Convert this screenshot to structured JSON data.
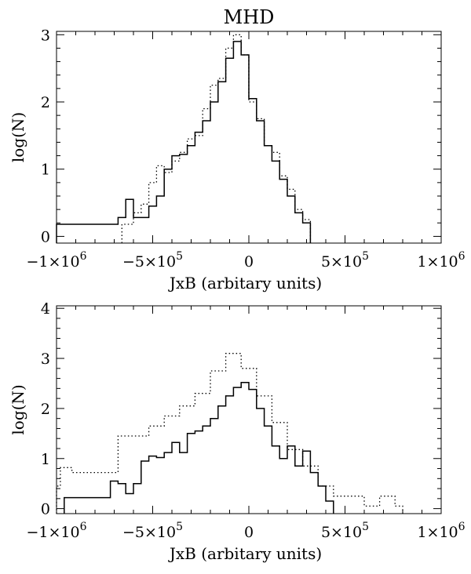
{
  "figure": {
    "title": "MHD"
  },
  "chart_data": [
    {
      "type": "histogram",
      "title": "MHD",
      "xlabel": "JxB (arbitary units)",
      "ylabel": "log(N)",
      "xlim": [
        -1000000,
        1000000
      ],
      "ylim": [
        -0.1,
        3.05
      ],
      "x_ticks": [
        {
          "value": -1000000,
          "base": "−1×10",
          "exp": "6"
        },
        {
          "value": -500000,
          "base": "−5×10",
          "exp": "5"
        },
        {
          "value": 0,
          "base": "0",
          "exp": ""
        },
        {
          "value": 500000,
          "base": "5×10",
          "exp": "5"
        },
        {
          "value": 1000000,
          "base": "1×10",
          "exp": "6"
        }
      ],
      "y_ticks": [
        "0",
        "1",
        "2",
        "3"
      ],
      "bin_width": 40000,
      "series": [
        {
          "style": "solid",
          "bins": [
            {
              "x0": -1000000,
              "y": 0.18
            },
            {
              "x0": -680000,
              "y": 0.28
            },
            {
              "x0": -640000,
              "y": 0.55
            },
            {
              "x0": -600000,
              "y": 0.28
            },
            {
              "x0": -520000,
              "y": 0.45
            },
            {
              "x0": -480000,
              "y": 0.6
            },
            {
              "x0": -440000,
              "y": 1.0
            },
            {
              "x0": -400000,
              "y": 1.2
            },
            {
              "x0": -360000,
              "y": 1.22
            },
            {
              "x0": -320000,
              "y": 1.35
            },
            {
              "x0": -280000,
              "y": 1.55
            },
            {
              "x0": -240000,
              "y": 1.72
            },
            {
              "x0": -200000,
              "y": 2.0
            },
            {
              "x0": -160000,
              "y": 2.3
            },
            {
              "x0": -120000,
              "y": 2.65
            },
            {
              "x0": -80000,
              "y": 2.9
            },
            {
              "x0": -40000,
              "y": 2.7
            },
            {
              "x0": 0,
              "y": 2.05
            },
            {
              "x0": 40000,
              "y": 1.72
            },
            {
              "x0": 80000,
              "y": 1.35
            },
            {
              "x0": 120000,
              "y": 1.12
            },
            {
              "x0": 160000,
              "y": 0.85
            },
            {
              "x0": 200000,
              "y": 0.6
            },
            {
              "x0": 240000,
              "y": 0.35
            },
            {
              "x0": 280000,
              "y": 0.2
            }
          ]
        },
        {
          "style": "dotted",
          "bins": [
            {
              "x0": -660000,
              "y": 0.18
            },
            {
              "x0": -600000,
              "y": 0.35
            },
            {
              "x0": -560000,
              "y": 0.48
            },
            {
              "x0": -520000,
              "y": 0.8
            },
            {
              "x0": -480000,
              "y": 1.05
            },
            {
              "x0": -440000,
              "y": 0.95
            },
            {
              "x0": -400000,
              "y": 1.12
            },
            {
              "x0": -360000,
              "y": 1.25
            },
            {
              "x0": -320000,
              "y": 1.45
            },
            {
              "x0": -280000,
              "y": 1.5
            },
            {
              "x0": -240000,
              "y": 1.9
            },
            {
              "x0": -200000,
              "y": 2.25
            },
            {
              "x0": -160000,
              "y": 2.35
            },
            {
              "x0": -120000,
              "y": 2.8
            },
            {
              "x0": -80000,
              "y": 3.0
            },
            {
              "x0": -40000,
              "y": 2.7
            },
            {
              "x0": 0,
              "y": 2.0
            },
            {
              "x0": 40000,
              "y": 1.75
            },
            {
              "x0": 80000,
              "y": 1.35
            },
            {
              "x0": 120000,
              "y": 1.25
            },
            {
              "x0": 160000,
              "y": 0.9
            },
            {
              "x0": 200000,
              "y": 0.7
            },
            {
              "x0": 240000,
              "y": 0.4
            },
            {
              "x0": 280000,
              "y": 0.25
            }
          ]
        }
      ]
    },
    {
      "type": "histogram",
      "title": "",
      "xlabel": "JxB (arbitary units)",
      "ylabel": "log(N)",
      "xlim": [
        -1000000,
        1000000
      ],
      "ylim": [
        -0.1,
        4.05
      ],
      "x_ticks": [
        {
          "value": -1000000,
          "base": "−1×10",
          "exp": "6"
        },
        {
          "value": -500000,
          "base": "−5×10",
          "exp": "5"
        },
        {
          "value": 0,
          "base": "0",
          "exp": ""
        },
        {
          "value": 500000,
          "base": "5×10",
          "exp": "5"
        },
        {
          "value": 1000000,
          "base": "1×10",
          "exp": "6"
        }
      ],
      "y_ticks": [
        "0",
        "1",
        "2",
        "3",
        "4"
      ],
      "bin_width": 40000,
      "series": [
        {
          "style": "solid",
          "bins": [
            {
              "x0": -960000,
              "y": 0.22
            },
            {
              "x0": -720000,
              "y": 0.55
            },
            {
              "x0": -680000,
              "y": 0.5
            },
            {
              "x0": -640000,
              "y": 0.3
            },
            {
              "x0": -600000,
              "y": 0.5
            },
            {
              "x0": -560000,
              "y": 0.95
            },
            {
              "x0": -520000,
              "y": 1.05
            },
            {
              "x0": -480000,
              "y": 1.02
            },
            {
              "x0": -440000,
              "y": 1.12
            },
            {
              "x0": -400000,
              "y": 1.32
            },
            {
              "x0": -360000,
              "y": 1.12
            },
            {
              "x0": -320000,
              "y": 1.5
            },
            {
              "x0": -280000,
              "y": 1.55
            },
            {
              "x0": -240000,
              "y": 1.65
            },
            {
              "x0": -200000,
              "y": 1.8
            },
            {
              "x0": -160000,
              "y": 2.05
            },
            {
              "x0": -120000,
              "y": 2.25
            },
            {
              "x0": -80000,
              "y": 2.42
            },
            {
              "x0": -40000,
              "y": 2.52
            },
            {
              "x0": 0,
              "y": 2.38
            },
            {
              "x0": 40000,
              "y": 2.0
            },
            {
              "x0": 80000,
              "y": 1.65
            },
            {
              "x0": 120000,
              "y": 1.25
            },
            {
              "x0": 160000,
              "y": 1.0
            },
            {
              "x0": 200000,
              "y": 1.25
            },
            {
              "x0": 240000,
              "y": 0.85
            },
            {
              "x0": 280000,
              "y": 1.15
            },
            {
              "x0": 320000,
              "y": 0.72
            },
            {
              "x0": 360000,
              "y": 0.45
            },
            {
              "x0": 400000,
              "y": 0.15
            }
          ]
        },
        {
          "style": "dotted",
          "bins": [
            {
              "x0": -1000000,
              "y": 0.45
            },
            {
              "x0": -980000,
              "y": 0.82
            },
            {
              "x0": -920000,
              "y": 0.72
            },
            {
              "x0": -680000,
              "y": 1.45
            },
            {
              "x0": -520000,
              "y": 1.65
            },
            {
              "x0": -440000,
              "y": 1.85
            },
            {
              "x0": -360000,
              "y": 2.05
            },
            {
              "x0": -280000,
              "y": 2.3
            },
            {
              "x0": -200000,
              "y": 2.75
            },
            {
              "x0": -120000,
              "y": 3.1
            },
            {
              "x0": -40000,
              "y": 2.8
            },
            {
              "x0": 40000,
              "y": 2.25
            },
            {
              "x0": 120000,
              "y": 1.72
            },
            {
              "x0": 200000,
              "y": 1.18
            },
            {
              "x0": 280000,
              "y": 0.85
            },
            {
              "x0": 360000,
              "y": 0.45
            },
            {
              "x0": 440000,
              "y": 0.25
            },
            {
              "x0": 600000,
              "y": 0.05
            },
            {
              "x0": 680000,
              "y": 0.25
            },
            {
              "x0": 760000,
              "y": 0.05
            }
          ]
        }
      ]
    }
  ]
}
